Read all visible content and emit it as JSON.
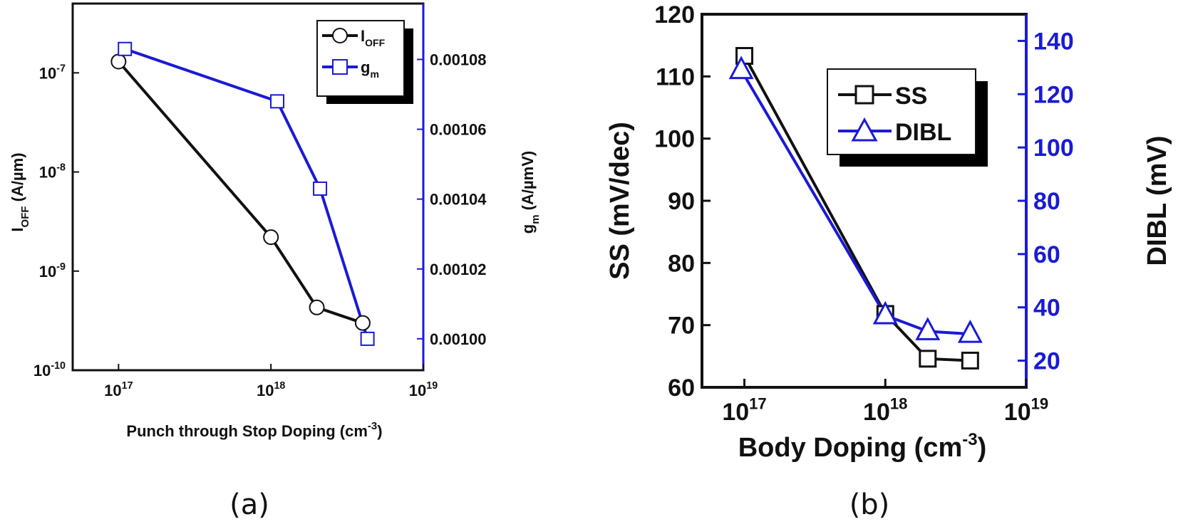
{
  "chart_data": [
    {
      "panel": "(a)",
      "type": "line",
      "x_scale": "log",
      "xlabel_main": "Punch through Stop Doping (cm",
      "xlabel_sup": "-3",
      "xlabel_close": ")",
      "xlim": [
        5e+16,
        1e+19
      ],
      "x_ticks": [
        {
          "base": "10",
          "exp": "17"
        },
        {
          "base": "10",
          "exp": "18"
        },
        {
          "base": "10",
          "exp": "19"
        }
      ],
      "left_axis": {
        "label_main": "I",
        "label_sub": "OFF",
        "label_rest": " (A/µm)",
        "scale": "log",
        "ylim": [
          1e-10,
          5e-07
        ],
        "ticks": [
          {
            "base": "10",
            "exp": "-7"
          },
          {
            "base": "10",
            "exp": "-8"
          },
          {
            "base": "10",
            "exp": "-9"
          },
          {
            "base": "10",
            "exp": "-10"
          }
        ]
      },
      "right_axis": {
        "label_main": "g",
        "label_sub": "m",
        "label_rest": " (A/µmV)",
        "ylim": [
          0.000991,
          0.001096
        ],
        "ticks": [
          "0.00108",
          "0.00106",
          "0.00104",
          "0.00102",
          "0.00100"
        ],
        "color": "#1a1ad6"
      },
      "series": [
        {
          "name_main": "I",
          "name_sub": "OFF",
          "axis": "left",
          "marker": "circle",
          "color": "#111111",
          "x": [
            1e+17,
            1e+18,
            2e+18,
            4e+18
          ],
          "y": [
            1.3e-07,
            2.2e-09,
            4.3e-10,
            3e-10
          ]
        },
        {
          "name_main": "g",
          "name_sub": "m",
          "axis": "right",
          "marker": "square",
          "color": "#1a1ad6",
          "x": [
            1.1e+17,
            1.1e+18,
            2.1e+18,
            4.3e+18
          ],
          "y": [
            0.001083,
            0.001068,
            0.001043,
            0.001
          ]
        }
      ],
      "legend": "top-right"
    },
    {
      "panel": "(b)",
      "type": "line",
      "x_scale": "log",
      "xlabel_main": "Body Doping (cm",
      "xlabel_sup": "-3",
      "xlabel_close": ")",
      "xlim": [
        5e+16,
        1e+19
      ],
      "x_ticks": [
        {
          "base": "10",
          "exp": "17"
        },
        {
          "base": "10",
          "exp": "18"
        },
        {
          "base": "10",
          "exp": "19"
        }
      ],
      "left_axis": {
        "label": "SS (mV/dec)",
        "ylim": [
          60,
          120
        ],
        "ticks": [
          "120",
          "110",
          "100",
          "90",
          "80",
          "70",
          "60"
        ]
      },
      "right_axis": {
        "label": "DIBL (mV)",
        "ylim": [
          10,
          150
        ],
        "ticks": [
          "140",
          "120",
          "100",
          "80",
          "60",
          "40",
          "20"
        ],
        "color": "#1a1ad6"
      },
      "series": [
        {
          "name": "SS",
          "axis": "left",
          "marker": "square",
          "color": "#111111",
          "x": [
            1e+17,
            1e+18,
            2e+18,
            4e+18
          ],
          "y": [
            113.3,
            71.8,
            64.6,
            64.3
          ]
        },
        {
          "name": "DIBL",
          "axis": "right",
          "marker": "triangle",
          "color": "#1a1ad6",
          "x": [
            9.5e+16,
            1e+18,
            2e+18,
            4e+18
          ],
          "y": [
            129,
            37,
            31,
            30
          ]
        }
      ],
      "legend": "top-center"
    }
  ]
}
